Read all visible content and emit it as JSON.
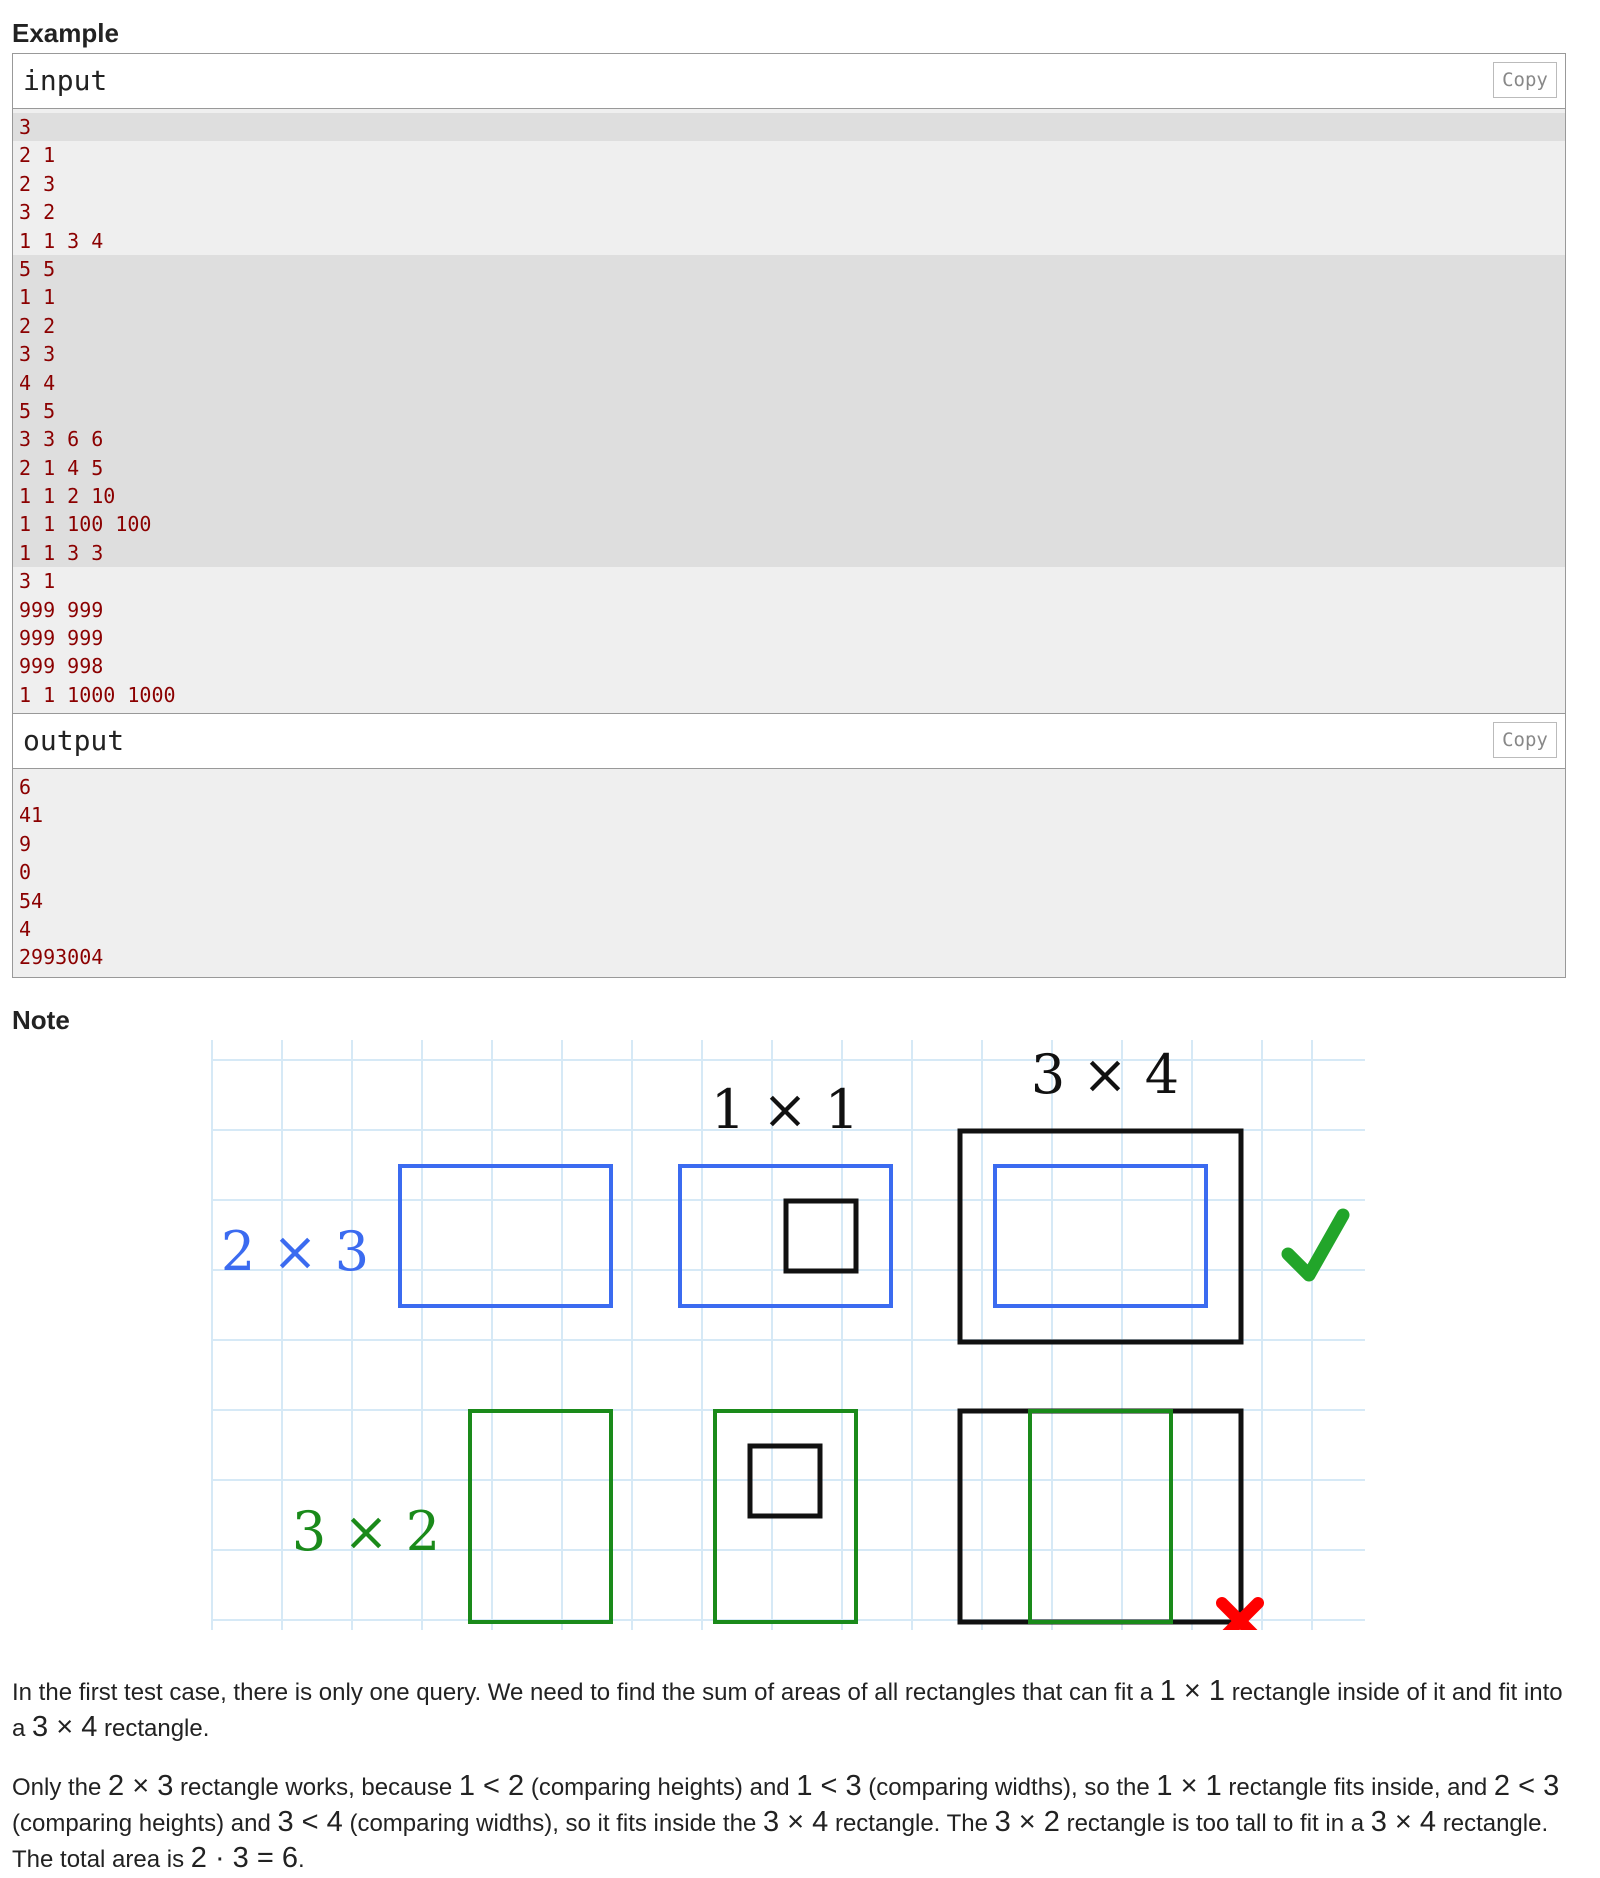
{
  "example_heading": "Example",
  "input": {
    "label": "input",
    "copy_label": "Copy",
    "lines": [
      "3",
      "2 1",
      "2 3",
      "3 2",
      "1 1 3 4",
      "5 5",
      "1 1",
      "2 2",
      "3 3",
      "4 4",
      "5 5",
      "3 3 6 6",
      "2 1 4 5",
      "1 1 2 10",
      "1 1 100 100",
      "1 1 3 3",
      "3 1",
      "999 999",
      "999 999",
      "999 998",
      "1 1 1000 1000"
    ],
    "highlighted_lines": [
      0,
      5,
      6,
      7,
      8,
      9,
      10,
      11,
      12,
      13,
      14,
      15
    ]
  },
  "output": {
    "label": "output",
    "copy_label": "Copy",
    "lines": [
      "6",
      "41",
      "9",
      "0",
      "54",
      "4",
      "2993004"
    ]
  },
  "note_heading": "Note",
  "figure": {
    "label_top_middle": "1 × 1",
    "label_top_right": "3 × 4",
    "label_blue": "2 × 3",
    "label_green": "3 × 2",
    "check_color": "#22a52a",
    "cross_color": "#ff0000",
    "blue": "#3b6bf0",
    "green": "#1a8a1a"
  },
  "note": {
    "p1": [
      "In the first test case, there is only one query. We need to find the sum of areas of all rectangles that can fit a ",
      "1 × 1",
      " rectangle inside of it and fit into a ",
      "3 × 4",
      " rectangle."
    ],
    "p2": [
      "Only the ",
      "2 × 3",
      " rectangle works, because ",
      "1 < 2",
      " (comparing heights) and ",
      "1 < 3",
      " (comparing widths), so the ",
      "1 × 1",
      " rectangle fits inside, and ",
      "2 < 3",
      " (comparing heights) and ",
      "3 < 4",
      " (comparing widths), so it fits inside the ",
      "3 × 4",
      " rectangle. The ",
      "3 × 2",
      " rectangle is too tall to fit in a ",
      "3 × 4",
      " rectangle. The total area is ",
      "2 · 3 = 6",
      "."
    ]
  }
}
